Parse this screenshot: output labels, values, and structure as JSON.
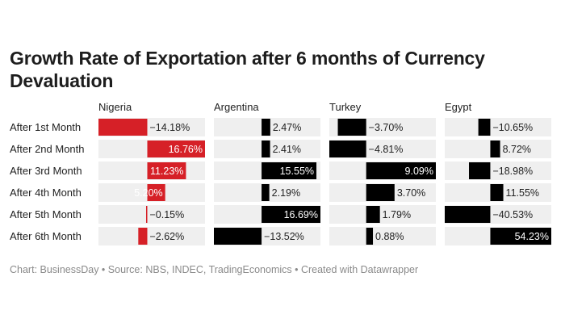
{
  "chart_data": {
    "type": "bar",
    "title": "Growth Rate of Exportation after 6 months of Currency Devaluation",
    "categories": [
      "After 1st Month",
      "After 2nd Month",
      "After 3rd Month",
      "After 4th Month",
      "After 5th Month",
      "After 6th Month"
    ],
    "series": [
      {
        "name": "Nigeria",
        "color": "#d62027",
        "values": [
          -14.18,
          16.76,
          11.23,
          5.2,
          -0.15,
          -2.62
        ],
        "labels": [
          "−14.18%",
          "16.76%",
          "11.23%",
          "5.20%",
          "−0.15%",
          "−2.62%"
        ]
      },
      {
        "name": "Argentina",
        "color": "#000000",
        "values": [
          2.47,
          2.41,
          15.55,
          2.19,
          16.69,
          -13.52
        ],
        "labels": [
          "2.47%",
          "2.41%",
          "15.55%",
          "2.19%",
          "16.69%",
          "−13.52%"
        ]
      },
      {
        "name": "Turkey",
        "color": "#000000",
        "values": [
          -3.7,
          -4.81,
          9.09,
          3.7,
          1.79,
          0.88
        ],
        "labels": [
          "−3.70%",
          "−4.81%",
          "9.09%",
          "3.70%",
          "1.79%",
          "0.88%"
        ]
      },
      {
        "name": "Egypt",
        "color": "#000000",
        "values": [
          -10.65,
          8.72,
          -18.98,
          11.55,
          -40.53,
          54.23
        ],
        "labels": [
          "−10.65%",
          "8.72%",
          "−18.98%",
          "11.55%",
          "−40.53%",
          "54.23%"
        ]
      }
    ],
    "background_color": "#efefef"
  },
  "source": "Chart: BusinessDay • Source: NBS, INDEC, TradingEconomics • Created with Datawrapper"
}
